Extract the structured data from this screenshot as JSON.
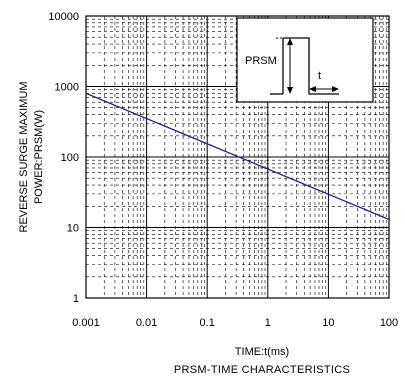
{
  "chart_data": {
    "type": "line",
    "title": "",
    "caption": "PRSM-TIME CHARACTERISTICS",
    "xlabel": "TIME:t(ms)",
    "ylabel_line1": "REVERSE SURGE MAXIMUM",
    "ylabel_line2": "POWER:PRSM(W)",
    "x_scale": "log",
    "y_scale": "log",
    "xlim": [
      0.001,
      100
    ],
    "ylim": [
      1,
      10000
    ],
    "x_ticks": [
      0.001,
      0.01,
      0.1,
      1,
      10,
      100
    ],
    "x_tick_labels": [
      "0.001",
      "0.01",
      "0.1",
      "1",
      "10",
      "100"
    ],
    "y_ticks": [
      1,
      10,
      100,
      1000,
      10000
    ],
    "y_tick_labels": [
      "1",
      "10",
      "100",
      "1000",
      "10000"
    ],
    "grid": true,
    "line_color": "#1a237e",
    "series": [
      {
        "x": [
          0.001,
          100
        ],
        "y": [
          800,
          13
        ]
      }
    ],
    "inset": {
      "label_prsm": "PRSM",
      "label_t": "t"
    }
  }
}
